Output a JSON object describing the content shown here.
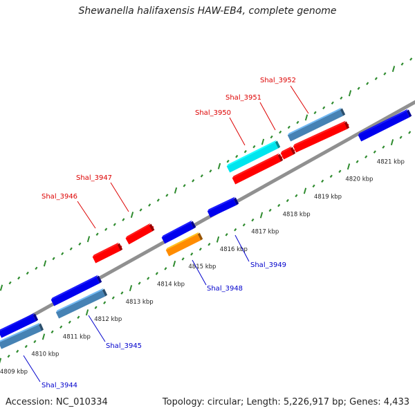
{
  "title": "Shewanella halifaxensis HAW-EB4, complete genome",
  "accession": "Accession: NC_010334",
  "summary": "Topology: circular; Length: 5,226,917 bp; Genes: 4,433",
  "scale_labels": [
    "4809 kbp",
    "4810 kbp",
    "4811 kbp",
    "4812 kbp",
    "4813 kbp",
    "4814 kbp",
    "4815 kbp",
    "4816 kbp",
    "4817 kbp",
    "4818 kbp",
    "4819 kbp",
    "4820 kbp",
    "4821 kbp"
  ],
  "colors": {
    "forward": "#ff0000",
    "reverse": "#0000ee",
    "forward_label": "#dd0000",
    "reverse_label": "#0000cc",
    "backbone": "#909090",
    "tick": "#2e8b2e",
    "steel": "#4682b4",
    "cyan": "#00e5ee",
    "orange": "#ff8c00"
  },
  "forward_genes": [
    "Shal_3946",
    "Shal_3947",
    "Shal_3950",
    "Shal_3951",
    "Shal_3952"
  ],
  "reverse_genes": [
    "Shal_3944",
    "Shal_3945",
    "Shal_3948",
    "Shal_3949"
  ]
}
